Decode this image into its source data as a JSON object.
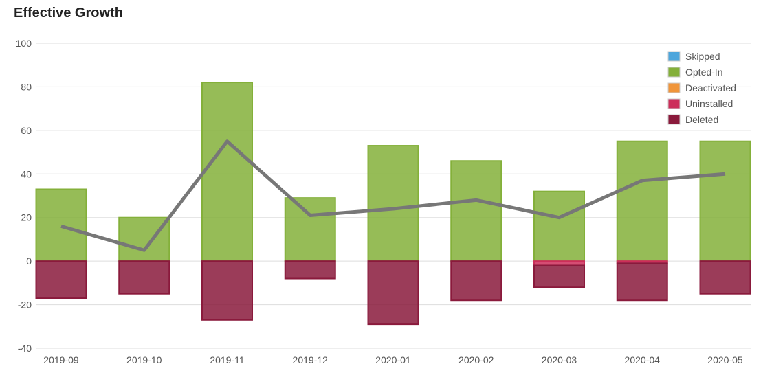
{
  "title": "Effective Growth",
  "chart_data": {
    "type": "bar",
    "title": "Effective Growth",
    "xlabel": "",
    "ylabel": "",
    "ylim": [
      -40,
      100
    ],
    "yticks": [
      100,
      80,
      60,
      40,
      20,
      0,
      -20,
      -40
    ],
    "categories": [
      "2019-09",
      "2019-10",
      "2019-11",
      "2019-12",
      "2020-01",
      "2020-02",
      "2020-03",
      "2020-04",
      "2020-05"
    ],
    "stacked": true,
    "grid": true,
    "legend_position": "top-right",
    "series": [
      {
        "name": "Skipped",
        "color": "#4ea6dc",
        "values": [
          0,
          0,
          0,
          0,
          0,
          0,
          0,
          0,
          0
        ]
      },
      {
        "name": "Opted-In",
        "color": "#84b03a",
        "values": [
          33,
          20,
          82,
          29,
          53,
          46,
          32,
          55,
          55
        ]
      },
      {
        "name": "Deactivated",
        "color": "#f0953a",
        "values": [
          0,
          0,
          0,
          0,
          0,
          0,
          0,
          0,
          0
        ]
      },
      {
        "name": "Uninstalled",
        "color": "#cc2e5a",
        "values": [
          0,
          0,
          0,
          0,
          0,
          0,
          -2,
          -1,
          0
        ]
      },
      {
        "name": "Deleted",
        "color": "#8a1a3c",
        "values": [
          -17,
          -15,
          -27,
          -8,
          -29,
          -18,
          -10,
          -17,
          -15
        ]
      }
    ],
    "line": {
      "color": "#777777",
      "values": [
        16,
        5,
        55,
        21,
        24,
        28,
        20,
        37,
        40
      ]
    }
  }
}
